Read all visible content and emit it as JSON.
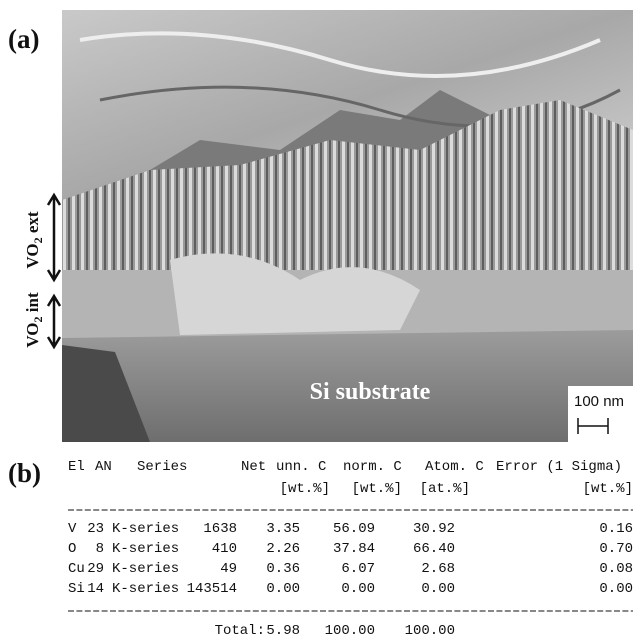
{
  "panel_a": {
    "label": "(a)",
    "vo2_ext": {
      "prefix": "VO",
      "subscript": "2",
      "suffix": " ext"
    },
    "vo2_int": {
      "prefix": "VO",
      "subscript": "2",
      "suffix": " int"
    },
    "substrate": "Si substrate",
    "scale_bar": "100 nm"
  },
  "panel_b": {
    "label": "(b)",
    "header": [
      "El",
      "AN",
      "Series",
      "Net",
      "unn. C",
      "norm. C",
      "Atom. C",
      "Error (1 Sigma)"
    ],
    "units": [
      "[wt.%]",
      "[wt.%]",
      "[at.%]",
      "[wt.%]"
    ],
    "rows": [
      [
        "V",
        "23",
        "K-series",
        "1638",
        "3.35",
        "56.09",
        "30.92",
        "0.16"
      ],
      [
        "O",
        "8",
        "K-series",
        "410",
        "2.26",
        "37.84",
        "66.40",
        "0.70"
      ],
      [
        "Cu",
        "29",
        "K-series",
        "49",
        "0.36",
        "6.07",
        "2.68",
        "0.08"
      ],
      [
        "Si",
        "14",
        "K-series",
        "143514",
        "0.00",
        "0.00",
        "0.00",
        "0.00"
      ]
    ],
    "total": [
      "Total:",
      "5.98",
      "100.00",
      "100.00"
    ]
  }
}
